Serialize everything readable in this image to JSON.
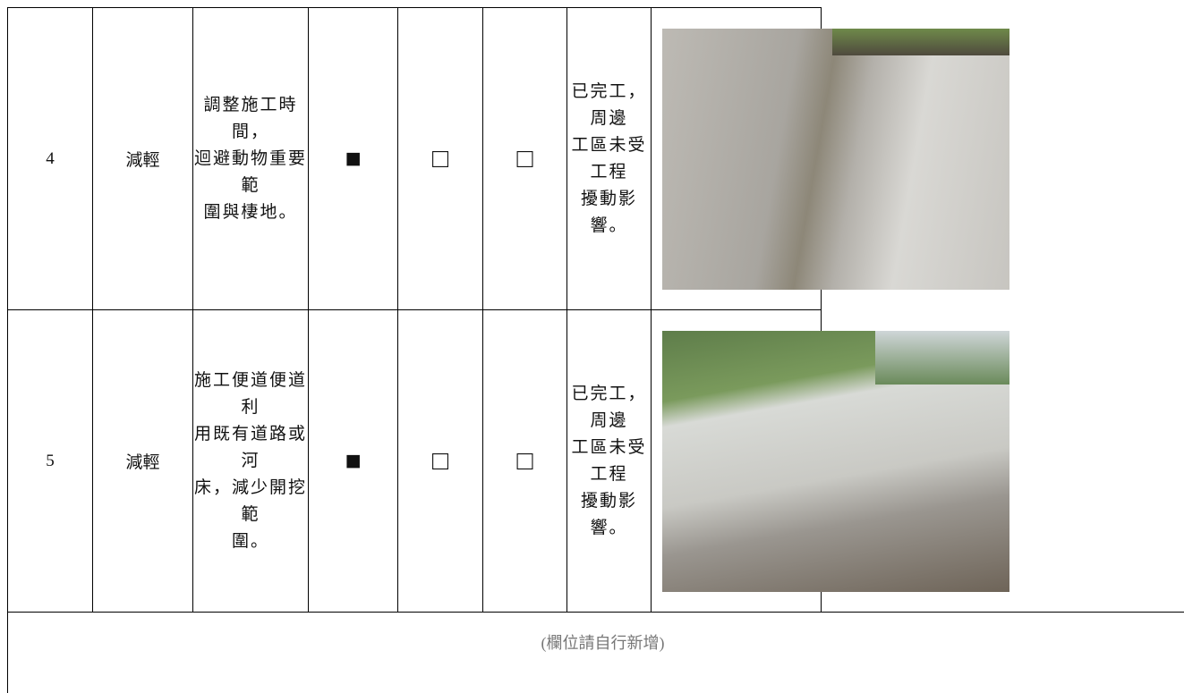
{
  "table": {
    "rows": [
      {
        "no": "4",
        "type": "減輕",
        "measure": [
          "調整施工時間，",
          "迴避動物重要範",
          "圍與棲地。"
        ],
        "checks": [
          "■",
          "□",
          "□"
        ],
        "status": [
          "已完工，周邊",
          "工區未受工程",
          "擾動影響。"
        ]
      },
      {
        "no": "5",
        "type": "減輕",
        "measure": [
          "施工便道便道利",
          "用既有道路或河",
          "床，減少開挖範",
          "圍。"
        ],
        "checks": [
          "■",
          "□",
          "□"
        ],
        "status": [
          "已完工，周邊",
          "工區未受工程",
          "擾動影響。"
        ]
      }
    ],
    "footer": "(欄位請自行新增)"
  }
}
